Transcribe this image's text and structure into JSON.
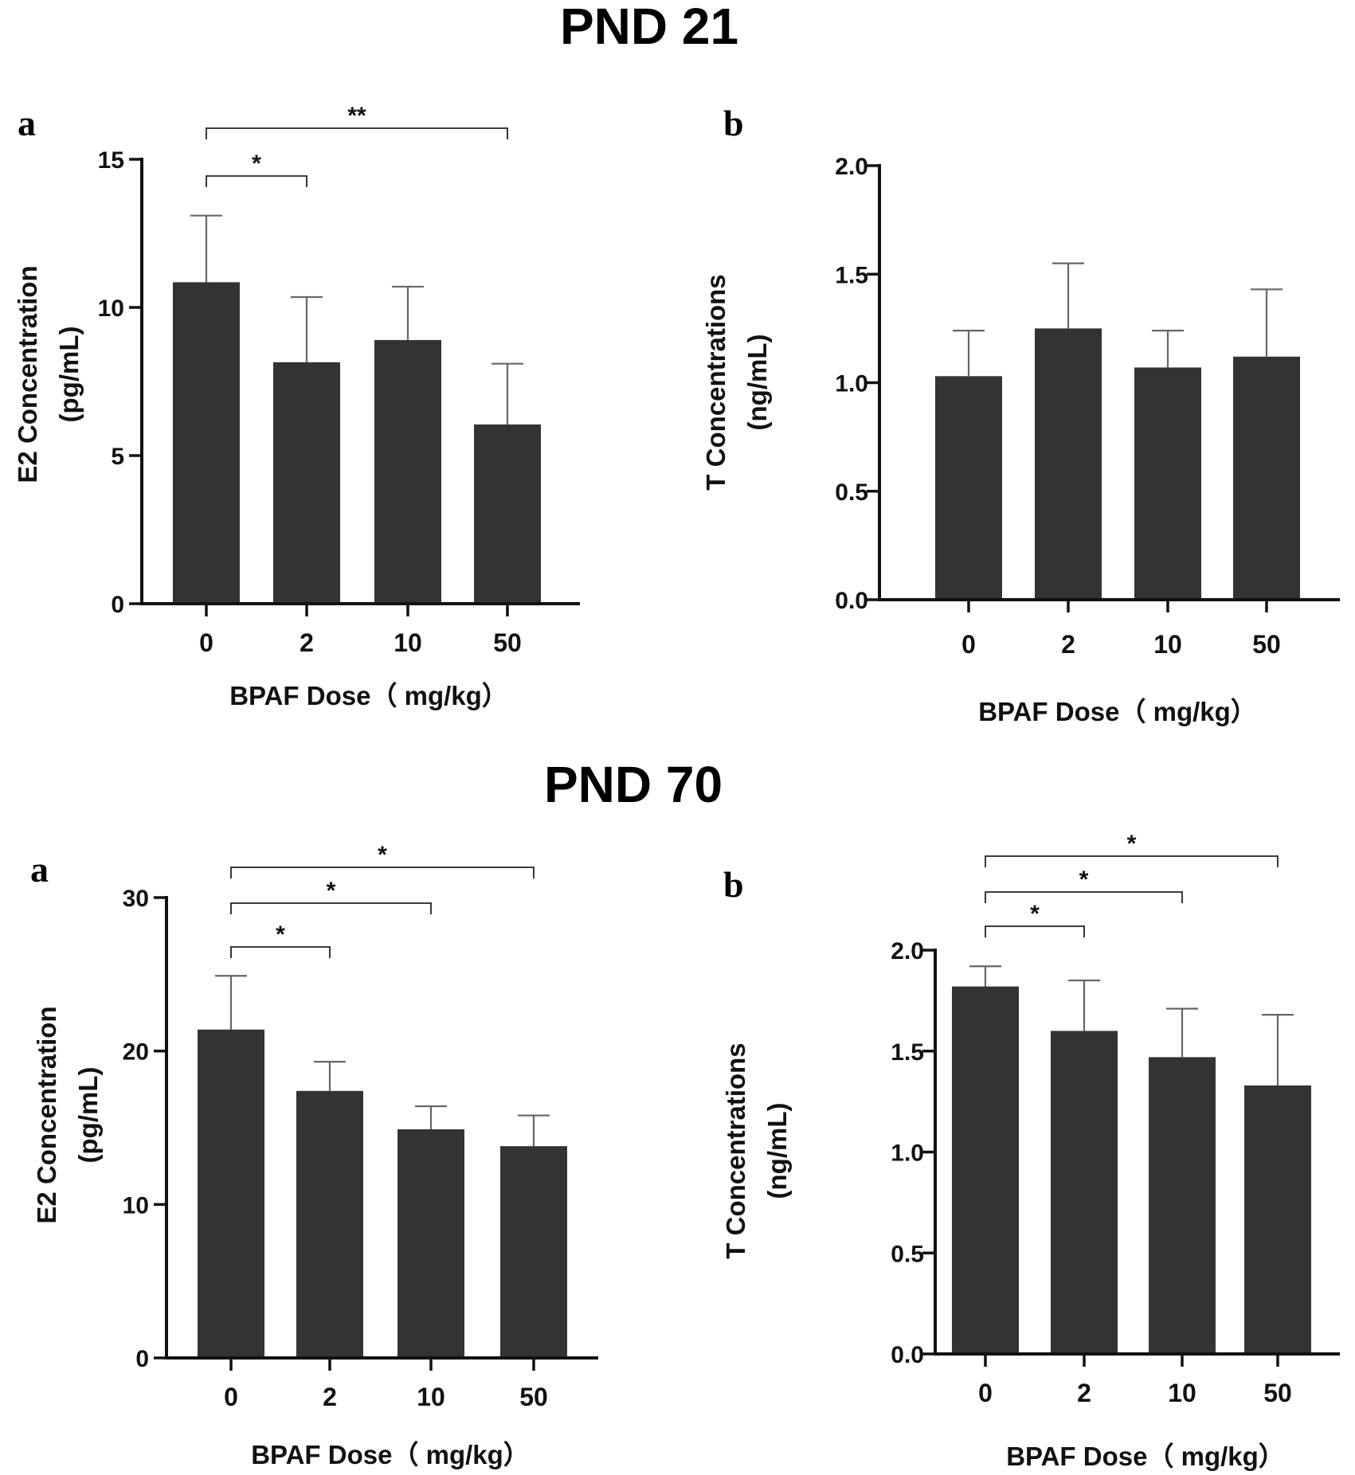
{
  "figure": {
    "sections": [
      {
        "title": "PND 21"
      },
      {
        "title": "PND 70"
      }
    ],
    "colors": {
      "bar": "#333333",
      "axis": "#111111",
      "error": "#666666"
    }
  },
  "chart_data": [
    {
      "type": "bar",
      "section": "PND 21",
      "panel": "a",
      "categories": [
        "0",
        "2",
        "10",
        "50"
      ],
      "values": [
        10.85,
        8.15,
        8.9,
        6.05
      ],
      "errors": [
        2.25,
        2.2,
        1.8,
        2.05
      ],
      "xlabel": "BPAF Dose（ mg/kg）",
      "ylabel": [
        "E2 Concentration",
        "(pg/mL)"
      ],
      "ylim": [
        0,
        15
      ],
      "yticks": [
        0,
        5,
        10,
        15
      ],
      "ytick_labels": [
        "0",
        "5",
        "10",
        "15"
      ],
      "significance": [
        {
          "from": 0,
          "to": 1,
          "label": "*"
        },
        {
          "from": 0,
          "to": 3,
          "label": "**"
        }
      ]
    },
    {
      "type": "bar",
      "section": "PND 21",
      "panel": "b",
      "categories": [
        "0",
        "2",
        "10",
        "50"
      ],
      "values": [
        1.03,
        1.25,
        1.07,
        1.12
      ],
      "errors": [
        0.21,
        0.3,
        0.17,
        0.31
      ],
      "xlabel": "BPAF Dose（ mg/kg）",
      "ylabel": [
        "T Concentrations",
        "(ng/mL)"
      ],
      "ylim": [
        0,
        2
      ],
      "yticks": [
        0,
        0.5,
        1,
        1.5,
        2
      ],
      "ytick_labels": [
        "0.0",
        "0.5",
        "1.0",
        "1.5",
        "2.0"
      ],
      "significance": []
    },
    {
      "type": "bar",
      "section": "PND 70",
      "panel": "a",
      "categories": [
        "0",
        "2",
        "10",
        "50"
      ],
      "values": [
        21.4,
        17.4,
        14.9,
        13.8
      ],
      "errors": [
        3.5,
        1.9,
        1.5,
        2.0
      ],
      "xlabel": "BPAF Dose（ mg/kg）",
      "ylabel": [
        "E2 Concentration",
        "(pg/mL)"
      ],
      "ylim": [
        0,
        30
      ],
      "yticks": [
        0,
        10,
        20,
        30
      ],
      "ytick_labels": [
        "0",
        "10",
        "20",
        "30"
      ],
      "significance": [
        {
          "from": 0,
          "to": 1,
          "label": "*"
        },
        {
          "from": 0,
          "to": 2,
          "label": "*"
        },
        {
          "from": 0,
          "to": 3,
          "label": "*"
        }
      ]
    },
    {
      "type": "bar",
      "section": "PND 70",
      "panel": "b",
      "categories": [
        "0",
        "2",
        "10",
        "50"
      ],
      "values": [
        1.82,
        1.6,
        1.47,
        1.33
      ],
      "errors": [
        0.1,
        0.25,
        0.24,
        0.35
      ],
      "xlabel": "BPAF Dose（ mg/kg）",
      "ylabel": [
        "T Concentrations",
        "(ng/mL)"
      ],
      "ylim": [
        0,
        2
      ],
      "yticks": [
        0,
        0.5,
        1,
        1.5,
        2
      ],
      "ytick_labels": [
        "0.0",
        "0.5",
        "1.0",
        "1.5",
        "2.0"
      ],
      "significance": [
        {
          "from": 0,
          "to": 1,
          "label": "*"
        },
        {
          "from": 0,
          "to": 2,
          "label": "*"
        },
        {
          "from": 0,
          "to": 3,
          "label": "*"
        }
      ]
    }
  ]
}
